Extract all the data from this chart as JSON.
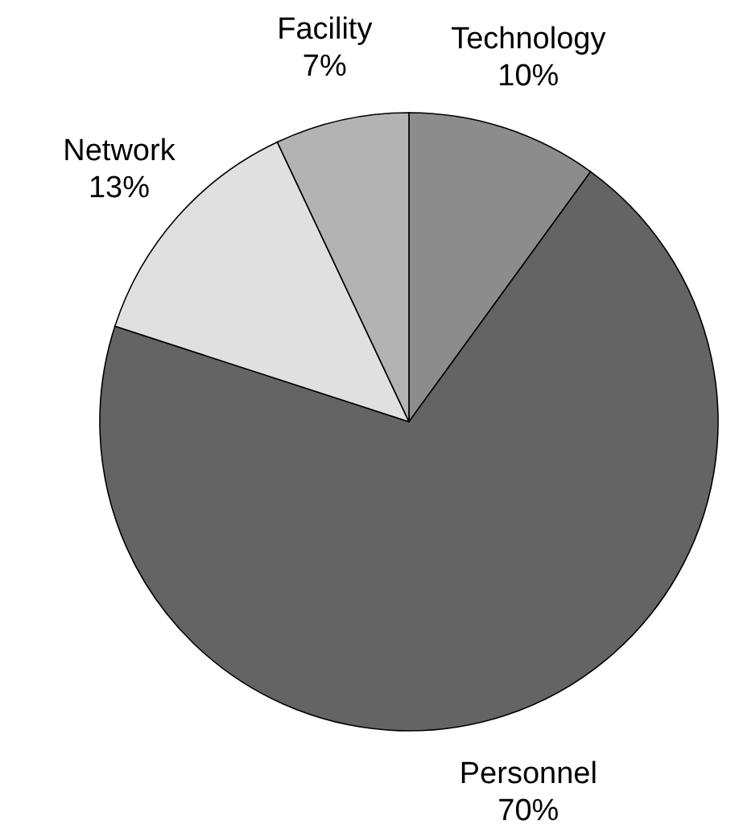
{
  "chart_data": {
    "type": "pie",
    "categories": [
      "Technology",
      "Personnel",
      "Network",
      "Facility"
    ],
    "values": [
      10,
      70,
      13,
      7
    ],
    "colors": [
      "#8c8c8c",
      "#646464",
      "#e0e0e0",
      "#b3b3b3"
    ],
    "value_labels": [
      "10%",
      "70%",
      "13%",
      "7%"
    ]
  }
}
